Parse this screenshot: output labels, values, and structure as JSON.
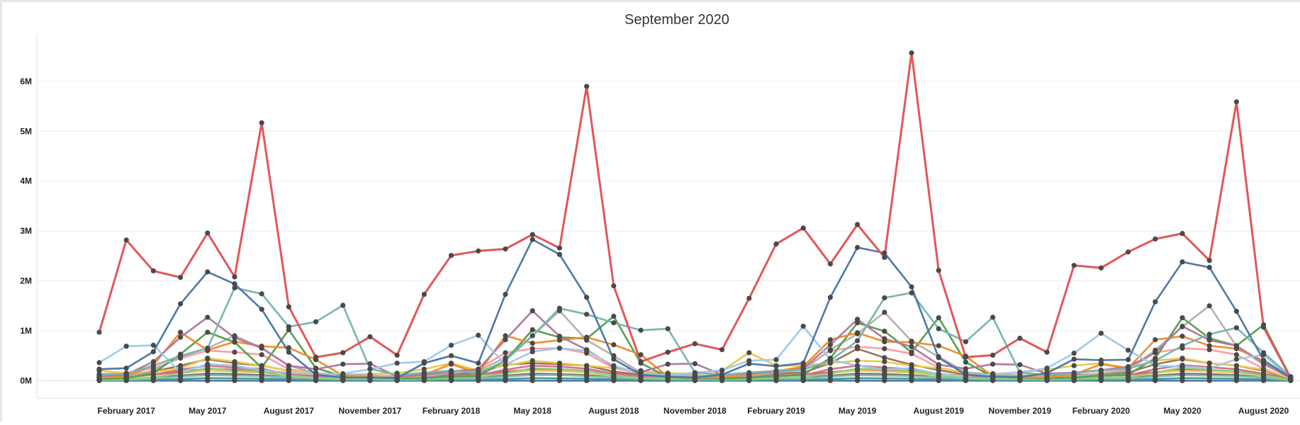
{
  "chart_data": {
    "type": "line",
    "title": "September 2020",
    "xlabel": "",
    "ylabel": "",
    "x": [
      "2017-01",
      "2017-02",
      "2017-03",
      "2017-04",
      "2017-05",
      "2017-06",
      "2017-07",
      "2017-08",
      "2017-09",
      "2017-10",
      "2017-11",
      "2017-12",
      "2018-01",
      "2018-02",
      "2018-03",
      "2018-04",
      "2018-05",
      "2018-06",
      "2018-07",
      "2018-08",
      "2018-09",
      "2018-10",
      "2018-11",
      "2018-12",
      "2019-01",
      "2019-02",
      "2019-03",
      "2019-04",
      "2019-05",
      "2019-06",
      "2019-07",
      "2019-08",
      "2019-09",
      "2019-10",
      "2019-11",
      "2019-12",
      "2020-01",
      "2020-02",
      "2020-03",
      "2020-04",
      "2020-05",
      "2020-06",
      "2020-07",
      "2020-08",
      "2020-09"
    ],
    "x_tick_labels": [
      {
        "x": "2017-02",
        "label": "February 2017"
      },
      {
        "x": "2017-05",
        "label": "May 2017"
      },
      {
        "x": "2017-08",
        "label": "August 2017"
      },
      {
        "x": "2017-11",
        "label": "November 2017"
      },
      {
        "x": "2018-02",
        "label": "February 2018"
      },
      {
        "x": "2018-05",
        "label": "May 2018"
      },
      {
        "x": "2018-08",
        "label": "August 2018"
      },
      {
        "x": "2018-11",
        "label": "November 2018"
      },
      {
        "x": "2019-02",
        "label": "February 2019"
      },
      {
        "x": "2019-05",
        "label": "May 2019"
      },
      {
        "x": "2019-08",
        "label": "August 2019"
      },
      {
        "x": "2019-11",
        "label": "November 2019"
      },
      {
        "x": "2020-02",
        "label": "February 2020"
      },
      {
        "x": "2020-05",
        "label": "May 2020"
      },
      {
        "x": "2020-08",
        "label": "August 2020"
      }
    ],
    "y_ticks": [
      {
        "value": 0,
        "label": "0M"
      },
      {
        "value": 1000000,
        "label": "1M"
      },
      {
        "value": 2000000,
        "label": "2M"
      },
      {
        "value": 3000000,
        "label": "3M"
      },
      {
        "value": 4000000,
        "label": "4M"
      },
      {
        "value": 5000000,
        "label": "5M"
      },
      {
        "value": 6000000,
        "label": "6M"
      }
    ],
    "ylim": [
      -350000,
      6950000
    ],
    "grid": true,
    "legend": "none",
    "marker_color": "#4a4a4a",
    "series": [
      {
        "color": "#e15759",
        "values": [
          970000,
          2820000,
          2200000,
          2070000,
          2960000,
          2080000,
          5170000,
          1480000,
          470000,
          560000,
          880000,
          510000,
          1730000,
          2510000,
          2600000,
          2640000,
          2930000,
          2660000,
          5900000,
          1900000,
          380000,
          570000,
          740000,
          620000,
          1650000,
          2740000,
          3060000,
          2340000,
          3130000,
          2470000,
          6570000,
          2210000,
          470000,
          510000,
          850000,
          570000,
          2310000,
          2260000,
          2580000,
          2840000,
          2950000,
          2410000,
          5590000,
          1070000,
          50000
        ]
      },
      {
        "color": "#4e79a7",
        "values": [
          230000,
          250000,
          580000,
          1540000,
          2180000,
          1940000,
          1430000,
          570000,
          120000,
          60000,
          60000,
          50000,
          350000,
          500000,
          350000,
          1730000,
          2830000,
          2530000,
          1670000,
          430000,
          120000,
          80000,
          60000,
          120000,
          340000,
          290000,
          350000,
          1670000,
          2670000,
          2560000,
          1880000,
          460000,
          120000,
          80000,
          70000,
          150000,
          430000,
          410000,
          420000,
          1580000,
          2380000,
          2270000,
          1390000,
          410000,
          60000
        ]
      },
      {
        "color": "#76b7b2",
        "values": [
          120000,
          140000,
          300000,
          500000,
          650000,
          1860000,
          1740000,
          1080000,
          1180000,
          1510000,
          240000,
          110000,
          160000,
          200000,
          150000,
          400000,
          900000,
          1450000,
          1330000,
          1160000,
          1010000,
          1040000,
          160000,
          120000,
          160000,
          200000,
          220000,
          400000,
          800000,
          1660000,
          1760000,
          1040000,
          780000,
          1270000,
          160000,
          110000,
          150000,
          210000,
          240000,
          400000,
          700000,
          930000,
          1060000,
          560000,
          80000
        ]
      },
      {
        "color": "#a0cbe8",
        "values": [
          360000,
          690000,
          710000,
          170000,
          330000,
          300000,
          210000,
          160000,
          130000,
          140000,
          230000,
          350000,
          380000,
          710000,
          910000,
          320000,
          580000,
          650000,
          600000,
          300000,
          140000,
          110000,
          160000,
          210000,
          400000,
          420000,
          1090000,
          420000,
          300000,
          220000,
          250000,
          130000,
          90000,
          130000,
          170000,
          250000,
          550000,
          950000,
          610000,
          300000,
          280000,
          250000,
          430000,
          520000,
          40000
        ]
      },
      {
        "color": "#b07aa1",
        "values": [
          90000,
          120000,
          380000,
          870000,
          1270000,
          860000,
          650000,
          300000,
          230000,
          330000,
          340000,
          80000,
          120000,
          180000,
          230000,
          820000,
          1400000,
          890000,
          620000,
          280000,
          170000,
          330000,
          340000,
          120000,
          140000,
          180000,
          240000,
          720000,
          1230000,
          840000,
          680000,
          320000,
          240000,
          330000,
          320000,
          140000,
          160000,
          210000,
          280000,
          560000,
          1090000,
          810000,
          700000,
          350000,
          50000
        ]
      },
      {
        "color": "#f28e2b",
        "values": [
          60000,
          80000,
          310000,
          970000,
          610000,
          780000,
          690000,
          660000,
          420000,
          100000,
          60000,
          60000,
          120000,
          330000,
          150000,
          900000,
          750000,
          810000,
          870000,
          720000,
          520000,
          80000,
          60000,
          70000,
          120000,
          190000,
          280000,
          820000,
          960000,
          780000,
          770000,
          700000,
          490000,
          90000,
          70000,
          60000,
          120000,
          330000,
          250000,
          820000,
          890000,
          700000,
          640000,
          400000,
          60000
        ]
      },
      {
        "color": "#59a14f",
        "values": [
          30000,
          50000,
          150000,
          530000,
          970000,
          770000,
          260000,
          1020000,
          250000,
          90000,
          70000,
          40000,
          50000,
          80000,
          90000,
          400000,
          1020000,
          870000,
          840000,
          1290000,
          350000,
          70000,
          50000,
          40000,
          60000,
          90000,
          120000,
          450000,
          1160000,
          990000,
          570000,
          1260000,
          370000,
          80000,
          60000,
          40000,
          60000,
          100000,
          120000,
          450000,
          1260000,
          850000,
          700000,
          1120000,
          60000
        ]
      },
      {
        "color": "#bab0ac",
        "values": [
          40000,
          80000,
          200000,
          480000,
          650000,
          900000,
          660000,
          300000,
          150000,
          120000,
          110000,
          70000,
          90000,
          150000,
          200000,
          460000,
          900000,
          1400000,
          810000,
          500000,
          160000,
          130000,
          110000,
          80000,
          100000,
          160000,
          210000,
          620000,
          940000,
          1370000,
          790000,
          480000,
          170000,
          120000,
          110000,
          70000,
          90000,
          150000,
          200000,
          610000,
          1080000,
          1500000,
          690000,
          320000,
          70000
        ]
      },
      {
        "color": "#edc948",
        "values": [
          200000,
          150000,
          170000,
          250000,
          450000,
          380000,
          300000,
          200000,
          150000,
          120000,
          130000,
          150000,
          230000,
          350000,
          200000,
          300000,
          400000,
          350000,
          300000,
          250000,
          200000,
          150000,
          140000,
          200000,
          560000,
          300000,
          300000,
          350000,
          400000,
          380000,
          300000,
          250000,
          150000,
          140000,
          160000,
          220000,
          300000,
          350000,
          250000,
          400000,
          450000,
          350000,
          300000,
          220000,
          50000
        ]
      },
      {
        "color": "#ff9da7",
        "values": [
          130000,
          150000,
          250000,
          450000,
          600000,
          570000,
          520000,
          230000,
          150000,
          100000,
          90000,
          100000,
          150000,
          190000,
          230000,
          560000,
          640000,
          650000,
          550000,
          250000,
          150000,
          110000,
          100000,
          100000,
          150000,
          200000,
          240000,
          600000,
          680000,
          640000,
          540000,
          260000,
          150000,
          110000,
          100000,
          110000,
          150000,
          200000,
          230000,
          560000,
          650000,
          620000,
          520000,
          240000,
          40000
        ]
      },
      {
        "color": "#9c755f",
        "values": [
          80000,
          100000,
          180000,
          300000,
          430000,
          350000,
          300000,
          200000,
          120000,
          90000,
          80000,
          70000,
          100000,
          130000,
          150000,
          320000,
          350000,
          330000,
          300000,
          180000,
          120000,
          90000,
          80000,
          80000,
          110000,
          140000,
          160000,
          350000,
          640000,
          460000,
          320000,
          210000,
          120000,
          90000,
          80000,
          80000,
          110000,
          140000,
          160000,
          330000,
          430000,
          350000,
          300000,
          200000,
          30000
        ]
      },
      {
        "color": "#8cd17d",
        "values": [
          20000,
          30000,
          60000,
          150000,
          250000,
          200000,
          180000,
          90000,
          50000,
          40000,
          40000,
          30000,
          40000,
          60000,
          70000,
          150000,
          250000,
          230000,
          200000,
          100000,
          50000,
          40000,
          40000,
          30000,
          40000,
          60000,
          70000,
          150000,
          240000,
          230000,
          200000,
          110000,
          50000,
          40000,
          40000,
          30000,
          40000,
          60000,
          70000,
          160000,
          260000,
          220000,
          190000,
          100000,
          20000
        ]
      },
      {
        "color": "#d37295",
        "values": [
          50000,
          70000,
          120000,
          220000,
          300000,
          260000,
          240000,
          130000,
          90000,
          60000,
          60000,
          60000,
          70000,
          100000,
          110000,
          220000,
          300000,
          280000,
          240000,
          140000,
          80000,
          60000,
          60000,
          60000,
          80000,
          100000,
          110000,
          230000,
          300000,
          260000,
          230000,
          140000,
          80000,
          60000,
          60000,
          60000,
          80000,
          100000,
          110000,
          230000,
          310000,
          270000,
          230000,
          140000,
          30000
        ]
      },
      {
        "color": "#86bcb6",
        "values": [
          10000,
          20000,
          40000,
          80000,
          110000,
          100000,
          90000,
          60000,
          40000,
          30000,
          30000,
          20000,
          30000,
          40000,
          40000,
          80000,
          110000,
          110000,
          90000,
          60000,
          40000,
          30000,
          30000,
          20000,
          30000,
          40000,
          40000,
          80000,
          110000,
          100000,
          90000,
          60000,
          40000,
          30000,
          30000,
          20000,
          30000,
          40000,
          40000,
          80000,
          110000,
          100000,
          90000,
          60000,
          10000
        ]
      },
      {
        "color": "#499894",
        "values": [
          5000,
          8000,
          15000,
          30000,
          50000,
          45000,
          40000,
          25000,
          15000,
          10000,
          10000,
          8000,
          10000,
          15000,
          18000,
          30000,
          50000,
          45000,
          40000,
          25000,
          15000,
          10000,
          10000,
          8000,
          10000,
          15000,
          18000,
          30000,
          50000,
          45000,
          40000,
          25000,
          15000,
          10000,
          10000,
          8000,
          10000,
          15000,
          18000,
          30000,
          50000,
          45000,
          40000,
          25000,
          5000
        ]
      },
      {
        "color": "#f1ce63",
        "values": [
          30000,
          40000,
          70000,
          150000,
          200000,
          180000,
          160000,
          90000,
          60000,
          50000,
          40000,
          40000,
          50000,
          60000,
          70000,
          150000,
          200000,
          190000,
          160000,
          90000,
          60000,
          50000,
          40000,
          40000,
          50000,
          60000,
          70000,
          150000,
          200000,
          180000,
          160000,
          90000,
          60000,
          50000,
          40000,
          40000,
          50000,
          60000,
          70000,
          150000,
          200000,
          180000,
          160000,
          90000,
          20000
        ]
      },
      {
        "color": "#79706e",
        "values": [
          20000,
          25000,
          50000,
          100000,
          140000,
          130000,
          110000,
          70000,
          40000,
          30000,
          30000,
          25000,
          30000,
          40000,
          50000,
          100000,
          140000,
          130000,
          110000,
          70000,
          40000,
          30000,
          30000,
          25000,
          30000,
          40000,
          50000,
          100000,
          140000,
          130000,
          110000,
          70000,
          40000,
          30000,
          30000,
          25000,
          30000,
          40000,
          50000,
          100000,
          140000,
          130000,
          110000,
          70000,
          15000
        ]
      },
      {
        "color": "#e15759",
        "values": [
          60000,
          80000,
          120000,
          180000,
          240000,
          220000,
          200000,
          150000,
          110000,
          90000,
          80000,
          70000,
          80000,
          110000,
          120000,
          180000,
          230000,
          210000,
          190000,
          140000,
          100000,
          90000,
          80000,
          70000,
          80000,
          100000,
          120000,
          170000,
          220000,
          200000,
          180000,
          130000,
          100000,
          90000,
          80000,
          70000,
          80000,
          100000,
          120000,
          170000,
          220000,
          200000,
          180000,
          130000,
          40000
        ]
      },
      {
        "color": "#4e79a7",
        "values": [
          0,
          0,
          0,
          0,
          0,
          0,
          0,
          0,
          0,
          0,
          0,
          0,
          0,
          0,
          0,
          0,
          0,
          0,
          0,
          0,
          0,
          0,
          0,
          0,
          0,
          0,
          0,
          0,
          0,
          0,
          0,
          0,
          0,
          0,
          0,
          0,
          0,
          0,
          0,
          0,
          0,
          0,
          0,
          0,
          0
        ]
      }
    ]
  }
}
